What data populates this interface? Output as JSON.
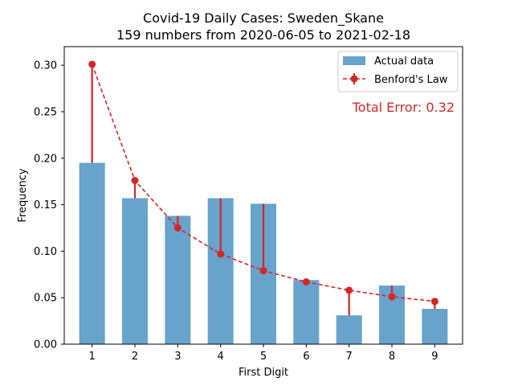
{
  "chart_data": {
    "type": "bar",
    "title_line1": "Covid-19 Daily Cases: Sweden_Skane",
    "title_line2": "159 numbers from 2020-06-05 to 2021-02-18",
    "xlabel": "First Digit",
    "ylabel": "Frequency",
    "categories": [
      "1",
      "2",
      "3",
      "4",
      "5",
      "6",
      "7",
      "8",
      "9"
    ],
    "ylim": [
      0,
      0.32
    ],
    "yticks": [
      0.0,
      0.05,
      0.1,
      0.15,
      0.2,
      0.25,
      0.3
    ],
    "ytick_labels": [
      "0.00",
      "0.05",
      "0.10",
      "0.15",
      "0.20",
      "0.25",
      "0.30"
    ],
    "legend_position": "top-right",
    "annotation": "Total Error: 0.32",
    "series": [
      {
        "name": "Actual data",
        "kind": "bar",
        "color": "#5b9bc8",
        "values": [
          0.195,
          0.157,
          0.138,
          0.157,
          0.151,
          0.069,
          0.031,
          0.063,
          0.038
        ]
      },
      {
        "name": "Benford's Law",
        "kind": "line-with-error",
        "color": "#d62728",
        "values": [
          0.301,
          0.176,
          0.125,
          0.097,
          0.079,
          0.067,
          0.058,
          0.051,
          0.046
        ]
      }
    ]
  }
}
